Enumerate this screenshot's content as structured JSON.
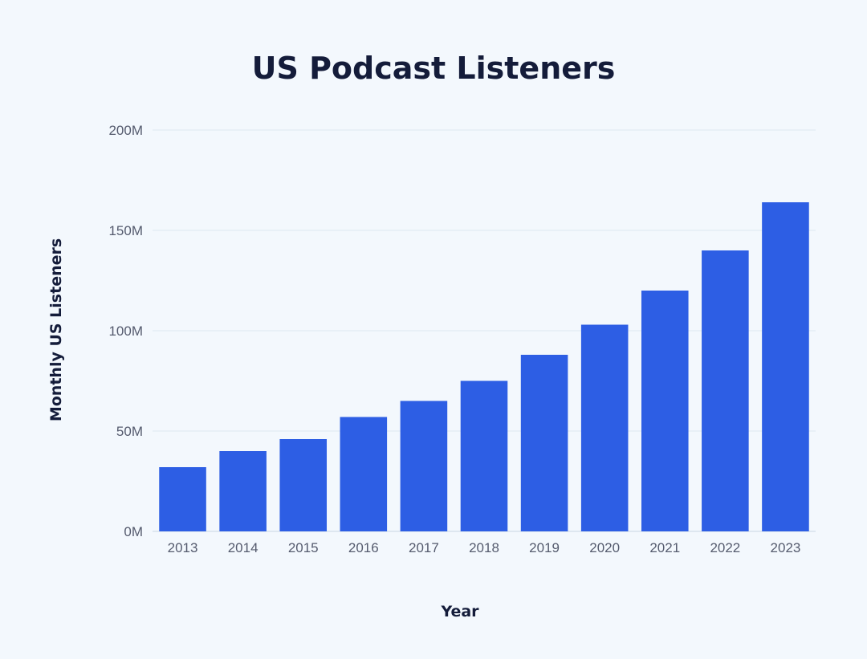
{
  "chart_data": {
    "type": "bar",
    "title": "US Podcast Listeners",
    "xlabel": "Year",
    "ylabel": "Monthly US Listeners",
    "categories": [
      "2013",
      "2014",
      "2015",
      "2016",
      "2017",
      "2018",
      "2019",
      "2020",
      "2021",
      "2022",
      "2023"
    ],
    "values": [
      32,
      40,
      46,
      57,
      65,
      75,
      88,
      103,
      120,
      140,
      164
    ],
    "unit_suffix": "M",
    "ylim": [
      0,
      200
    ],
    "yticks": [
      0,
      50,
      100,
      150,
      200
    ],
    "ytick_labels": [
      "0M",
      "50M",
      "100M",
      "150M",
      "200M"
    ],
    "grid": true,
    "bar_color": "#2d5ee4"
  }
}
